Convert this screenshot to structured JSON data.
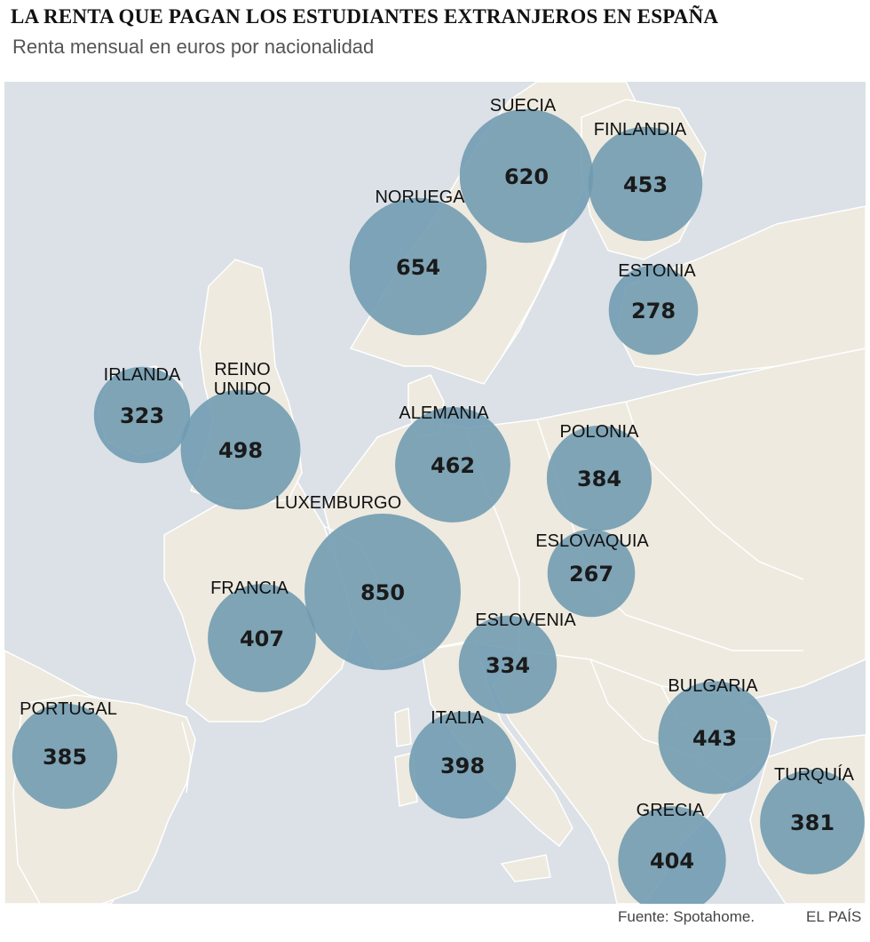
{
  "header": {
    "title": "LA RENTA QUE PAGAN LOS ESTUDIANTES EXTRANJEROS EN ESPAÑA",
    "subtitle": "Renta mensual en euros por nacionalidad"
  },
  "colors": {
    "sea": "#dbe1e6",
    "land": "#eeeadf",
    "border": "#ffffff",
    "bubble": "#6e9ab0"
  },
  "map_data": {
    "unit": "euros/mes",
    "countries": [
      {
        "name": "SUECIA",
        "value": 620
      },
      {
        "name": "FINLANDIA",
        "value": 453
      },
      {
        "name": "NORUEGA",
        "value": 654
      },
      {
        "name": "ESTONIA",
        "value": 278
      },
      {
        "name": "IRLANDA",
        "value": 323
      },
      {
        "name": "REINO UNIDO",
        "value": 498
      },
      {
        "name": "ALEMANIA",
        "value": 462
      },
      {
        "name": "POLONIA",
        "value": 384
      },
      {
        "name": "LUXEMBURGO",
        "value": 850
      },
      {
        "name": "ESLOVAQUIA",
        "value": 267
      },
      {
        "name": "FRANCIA",
        "value": 407
      },
      {
        "name": "ESLOVENIA",
        "value": 334
      },
      {
        "name": "PORTUGAL",
        "value": 385
      },
      {
        "name": "ITALIA",
        "value": 398
      },
      {
        "name": "BULGARIA",
        "value": 443
      },
      {
        "name": "TURQUÍA",
        "value": 381
      },
      {
        "name": "GRECIA",
        "value": 404
      }
    ]
  },
  "footer": {
    "source": "Fuente: Spotahome.",
    "brand": "EL PAÍS"
  }
}
